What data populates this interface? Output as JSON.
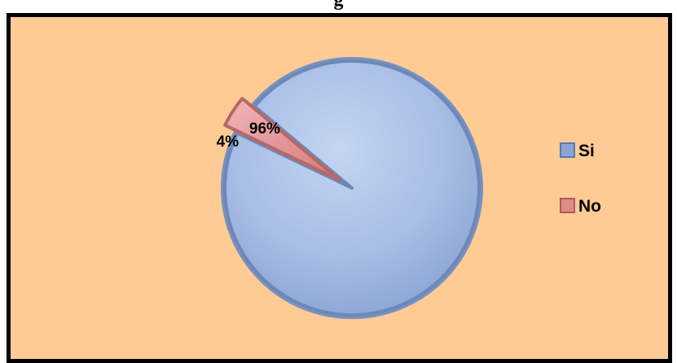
{
  "chart_data": {
    "type": "pie",
    "title": "",
    "slices": [
      {
        "label": "Si",
        "value": 96,
        "display": "96%",
        "color": "#9db5de"
      },
      {
        "label": "No",
        "value": 4,
        "display": "4%",
        "color": "#e39a9a"
      }
    ],
    "legend": {
      "placement": "right",
      "entries": [
        {
          "label": "Si",
          "color": "#8aa6d6"
        },
        {
          "label": "No",
          "color": "#e08b8b"
        }
      ]
    },
    "background_color": "#fecb95"
  }
}
